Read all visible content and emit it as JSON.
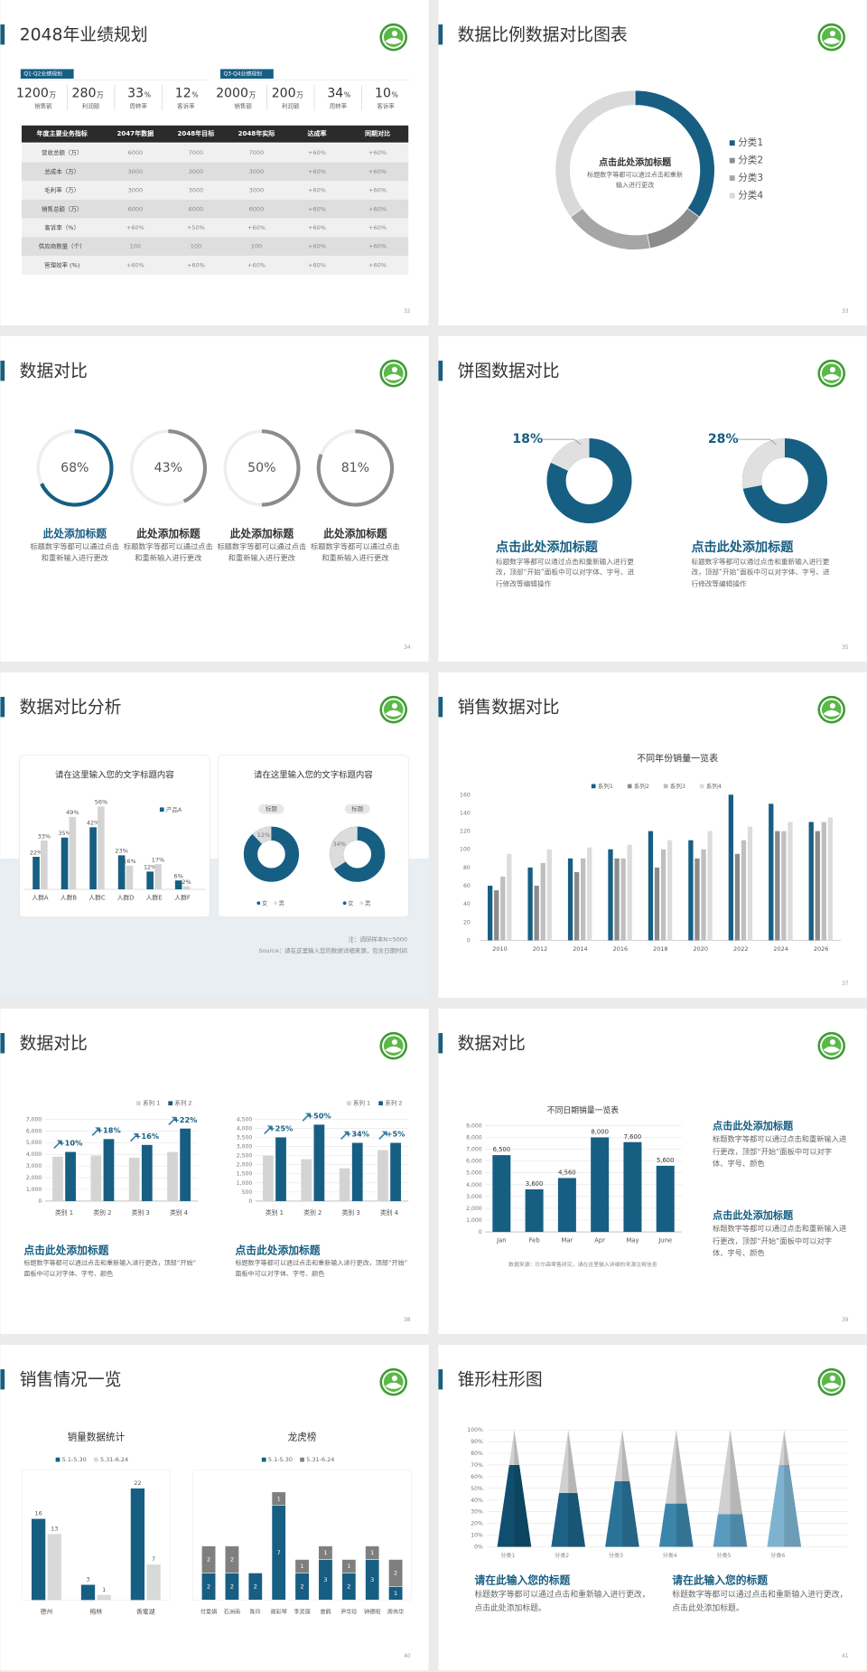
{
  "slides": [
    {
      "title": "2048年业绩规划",
      "page": "32",
      "stat_groups": [
        {
          "label": "Q1-Q2业绩规划",
          "stats": [
            {
              "value": "1200",
              "unit": "万",
              "label": "销售额"
            },
            {
              "value": "280",
              "unit": "万",
              "label": "利润额"
            },
            {
              "value": "33",
              "unit": "%",
              "label": "周转率"
            },
            {
              "value": "12",
              "unit": "%",
              "label": "客诉率"
            }
          ]
        },
        {
          "label": "Q3-Q4业绩规划",
          "stats": [
            {
              "value": "2000",
              "unit": "万",
              "label": "销售额"
            },
            {
              "value": "200",
              "unit": "万",
              "label": "利润额"
            },
            {
              "value": "34",
              "unit": "%",
              "label": "周转率"
            },
            {
              "value": "10",
              "unit": "%",
              "label": "客诉率"
            }
          ]
        }
      ],
      "table": {
        "header": [
          "年度主要业务指标",
          "2047年数据",
          "2048年目标",
          "2048年实际",
          "达成率",
          "同期对比"
        ],
        "rows": [
          [
            "营收总额（万）",
            "6000",
            "7000",
            "7000",
            "+60%",
            "+60%"
          ],
          [
            "总成本（万）",
            "3000",
            "3000",
            "3000",
            "+60%",
            "+60%"
          ],
          [
            "毛利率（万）",
            "3000",
            "3000",
            "3000",
            "+60%",
            "+60%"
          ],
          [
            "销售总额（万）",
            "6000",
            "6000",
            "6000",
            "+60%",
            "+60%"
          ],
          [
            "客诉率（%）",
            "+60%",
            "+50%",
            "+60%",
            "+60%",
            "+60%"
          ],
          [
            "供应商数量（个）",
            "100",
            "100",
            "100",
            "+60%",
            "+60%"
          ],
          [
            "管理效率 (%)",
            "+60%",
            "+60%",
            "+60%",
            "+60%",
            "+60%"
          ]
        ]
      }
    },
    {
      "title": "数据比例数据对比图表",
      "page": "33",
      "chart": {
        "type": "pie",
        "categories": [
          "分类1",
          "分类2",
          "分类3",
          "分类4"
        ],
        "values": [
          35,
          12,
          18,
          35
        ],
        "colors": [
          "#175e83",
          "#8c8c8c",
          "#a6a6a6",
          "#d9d9d9"
        ]
      },
      "center_title": "点击此处添加标题",
      "center_text": "标题数字等都可以通过点击和重新输入进行更改"
    },
    {
      "title": "数据对比",
      "page": "34",
      "chart": {
        "type": "ring",
        "values": [
          68,
          43,
          50,
          81
        ],
        "value_labels": [
          "68%",
          "43%",
          "50%",
          "81%"
        ],
        "colors": [
          "#175e83",
          "#8c8c8c",
          "#8c8c8c",
          "#8c8c8c"
        ]
      },
      "items": [
        {
          "title": "此处添加标题",
          "text": "标题数字等都可以通过点击和重新输入进行更改"
        },
        {
          "title": "此处添加标题",
          "text": "标题数字等都可以通过点击和重新输入进行更改"
        },
        {
          "title": "此处添加标题",
          "text": "标题数字等都可以通过点击和重新输入进行更改"
        },
        {
          "title": "此处添加标题",
          "text": "标题数字等都可以通过点击和重新输入进行更改"
        }
      ]
    },
    {
      "title": "饼图数据对比",
      "page": "35",
      "chart": {
        "type": "donut",
        "values": [
          18,
          28
        ],
        "value_labels": [
          "18%",
          "28%"
        ],
        "color": "#e0e0e0"
      },
      "items": [
        {
          "title": "点击此处添加标题",
          "text": "标题数字等都可以通过点击和重新输入进行更改，顶部“开始”面板中可以对字体、字号、进行修改等编辑操作"
        },
        {
          "title": "点击此处添加标题",
          "text": "标题数字等都可以通过点击和重新输入进行更改，顶部“开始”面板中可以对字体、字号、进行修改等编辑操作"
        }
      ]
    },
    {
      "title": "数据对比分析",
      "page": "36",
      "cards": [
        {
          "title": "请在这里输入您的文字标题内容",
          "chart": {
            "type": "bar",
            "categories": [
              "人群A",
              "人群B",
              "人群C",
              "人群D",
              "人群E",
              "人群F"
            ],
            "series": [
              {
                "name": "产品A",
                "color": "#175e83",
                "values": [
                  22,
                  35,
                  42,
                  23,
                  12,
                  6
                ],
                "value_labels": [
                  "22%",
                  "35%",
                  "42%",
                  "23%",
                  "12%",
                  "6%"
                ]
              },
              {
                "color": "#d4d4d4",
                "values": [
                  33,
                  49,
                  56,
                  16,
                  17,
                  2
                ],
                "value_labels": [
                  "33%",
                  "49%",
                  "56%",
                  "16%",
                  "17%",
                  "2%"
                ]
              }
            ]
          }
        },
        {
          "title": "请在这里输入您的文字标题内容",
          "chart": {
            "type": "donut",
            "labels": [
              "标题",
              "标题"
            ],
            "values": [
              12,
              34
            ],
            "value_labels": [
              "12%",
              "34%"
            ],
            "legend": [
              "女",
              "男"
            ],
            "colors": [
              "#175e83",
              "#dcdcdc"
            ]
          }
        }
      ],
      "notes": [
        "注：调研样本N=5000",
        "Source：请在这里输入您的数据详细来源，包含日期时间"
      ]
    },
    {
      "title": "销售数据对比",
      "page": "37",
      "chart": {
        "type": "bar",
        "title": "不同年份销量一览表",
        "categories": [
          "2010",
          "2012",
          "2014",
          "2016",
          "2018",
          "2020",
          "2022",
          "2024",
          "2026"
        ],
        "series": [
          {
            "name": "系列1",
            "color": "#175e83",
            "values": [
              60,
              80,
              90,
              100,
              120,
              110,
              160,
              150,
              130
            ]
          },
          {
            "name": "系列2",
            "color": "#8c8c8c",
            "values": [
              55,
              60,
              75,
              90,
              80,
              90,
              95,
              120,
              120
            ]
          },
          {
            "name": "系列3",
            "color": "#bfbfbf",
            "values": [
              70,
              85,
              90,
              90,
              100,
              100,
              110,
              120,
              130
            ]
          },
          {
            "name": "系列4",
            "color": "#dcdcdc",
            "values": [
              95,
              100,
              102,
              105,
              110,
              120,
              125,
              130,
              135
            ]
          }
        ],
        "ylim": [
          0,
          160
        ],
        "yticks": [
          0,
          20,
          40,
          60,
          80,
          100,
          120,
          140,
          160
        ],
        "grid": false
      }
    },
    {
      "title": "数据对比",
      "page": "38",
      "charts": [
        {
          "type": "bar",
          "categories": [
            "类别 1",
            "类别 2",
            "类别 3",
            "类别 4"
          ],
          "series": [
            {
              "name": "系列 1",
              "color": "#d4d4d4",
              "values": [
                3800,
                3900,
                3700,
                4200
              ]
            },
            {
              "name": "系列 2",
              "color": "#175e83",
              "values": [
                4200,
                5300,
                4800,
                6200
              ]
            }
          ],
          "annotations": [
            "+10%",
            "+18%",
            "+16%",
            "+22%"
          ],
          "ylim": [
            0,
            7000
          ],
          "yticks": [
            0,
            {
              "value": 1000,
              "label": "1,000"
            },
            {
              "value": 2000,
              "label": "2,000"
            },
            {
              "value": 3000,
              "label": "3,000"
            },
            {
              "value": 4000,
              "label": "4,000"
            },
            {
              "value": 5000,
              "label": "5,000"
            },
            {
              "value": 6000,
              "label": "6,000"
            },
            {
              "value": 7000,
              "label": "7,000"
            }
          ],
          "grid": true
        },
        {
          "type": "bar",
          "categories": [
            "类别 1",
            "类别 2",
            "类别 3",
            "类别 4"
          ],
          "series": [
            {
              "name": "系列 1",
              "color": "#d4d4d4",
              "values": [
                2500,
                2300,
                1800,
                2800
              ]
            },
            {
              "name": "系列 2",
              "color": "#175e83",
              "values": [
                3500,
                4200,
                3200,
                3200
              ]
            }
          ],
          "annotations": [
            "+25%",
            "+50%",
            "+34%",
            "+5%"
          ],
          "ylim": [
            0,
            4500
          ],
          "yticks": [
            0,
            500,
            {
              "value": 1000,
              "label": "1,000"
            },
            {
              "value": 1500,
              "label": "1,500"
            },
            {
              "value": 2000,
              "label": "2,000"
            },
            {
              "value": 2500,
              "label": "2,500"
            },
            {
              "value": 3000,
              "label": "3,000"
            },
            {
              "value": 3500,
              "label": "3,500"
            },
            {
              "value": 4000,
              "label": "4,000"
            },
            {
              "value": 4500,
              "label": "4,500"
            }
          ],
          "grid": true
        }
      ],
      "items": [
        {
          "title": "点击此处添加标题",
          "text": "标题数字等都可以通过点击和重新输入进行更改，顶部“开始”面板中可以对字体、字号、颜色"
        },
        {
          "title": "点击此处添加标题",
          "text": "标题数字等都可以通过点击和重新输入进行更改，顶部“开始”面板中可以对字体、字号、颜色"
        }
      ]
    },
    {
      "title": "数据对比",
      "page": "39",
      "chart": {
        "type": "bar",
        "title": "不同日期销量一览表",
        "categories": [
          "Jan",
          "Feb",
          "Mar",
          "Apr",
          "May",
          "June"
        ],
        "values": [
          6500,
          3600,
          4560,
          8000,
          7600,
          5600
        ],
        "value_labels": [
          "6,500",
          "3,600",
          "4,560",
          "8,000",
          "7,600",
          "5,600"
        ],
        "color": "#175e83",
        "ylim": [
          0,
          9000
        ],
        "yticks": [
          0,
          {
            "value": 1000,
            "label": "1,000"
          },
          {
            "value": 2000,
            "label": "2,000"
          },
          {
            "value": 3000,
            "label": "3,000"
          },
          {
            "value": 4000,
            "label": "4,000"
          },
          {
            "value": 5000,
            "label": "5,000"
          },
          {
            "value": 6000,
            "label": "6,000"
          },
          {
            "value": 7000,
            "label": "7,000"
          },
          {
            "value": 8000,
            "label": "8,000"
          },
          {
            "value": 9000,
            "label": "9,000"
          }
        ],
        "grid": true,
        "source": "数据来源：珍尔森零售研究，请在这里输入详细的来源注释信息"
      },
      "items": [
        {
          "title": "点击此处添加标题",
          "text": "标题数字等都可以通过点击和重新输入进行更改，顶部“开始”面板中可以对字体、字号、颜色"
        },
        {
          "title": "点击此处添加标题",
          "text": "标题数字等都可以通过点击和重新输入进行更改，顶部“开始”面板中可以对字体、字号、颜色"
        }
      ]
    },
    {
      "title": "销售情况一览",
      "page": "40",
      "charts": [
        {
          "type": "bar",
          "title": "销量数据统计",
          "categories": [
            "德州",
            "梅林",
            "香蜜湖"
          ],
          "series": [
            {
              "name": "5.1-5.30",
              "color": "#175e83",
              "values": [
                16,
                3,
                22
              ]
            },
            {
              "name": "5.31-6.24",
              "color": "#d9d9d9",
              "values": [
                13,
                1,
                7
              ]
            }
          ]
        },
        {
          "type": "stacked-bar",
          "title": "龙虎榜",
          "categories": [
            "付夏娟",
            "石洲南",
            "陈玲",
            "谢彩琴",
            "李灵丽",
            "曾鹤",
            "尹华珍",
            "钟德昭",
            "周伟华"
          ],
          "series": [
            {
              "name": "5.1-5.30",
              "color": "#175e83",
              "values": [
                2,
                2,
                2,
                7,
                2,
                3,
                2,
                3,
                1
              ]
            },
            {
              "name": "5.31-6.24",
              "color": "#7f7f7f",
              "values": [
                2,
                2,
                null,
                1,
                1,
                1,
                1,
                1,
                2
              ]
            }
          ]
        }
      ]
    },
    {
      "title": "锥形柱形图",
      "page": "41",
      "chart": {
        "type": "cone",
        "categories": [
          "分类1",
          "分类2",
          "分类3",
          "分类4",
          "分类5",
          "分类6"
        ],
        "series": [
          {
            "values": [
              70,
              46,
              56,
              37,
              28,
              70
            ],
            "colors": [
              "#0f4e6e",
              "#1d6186",
              "#2a7398",
              "#3b85aa",
              "#5a9bbd",
              "#7db3cf"
            ]
          },
          {
            "values": [
              30,
              54,
              44,
              63,
              72,
              30
            ],
            "color": "#d0d0d0"
          }
        ],
        "ylim": [
          0,
          100
        ],
        "yticks": [
          {
            "value": 0,
            "label": "0%"
          },
          {
            "value": 10,
            "label": "10%"
          },
          {
            "value": 20,
            "label": "20%"
          },
          {
            "value": 30,
            "label": "30%"
          },
          {
            "value": 40,
            "label": "40%"
          },
          {
            "value": 50,
            "label": "50%"
          },
          {
            "value": 60,
            "label": "60%"
          },
          {
            "value": 70,
            "label": "70%"
          },
          {
            "value": 80,
            "label": "80%"
          },
          {
            "value": 90,
            "label": "90%"
          },
          {
            "value": 100,
            "label": "100%"
          }
        ],
        "grid": true
      },
      "items": [
        {
          "title": "请在此输入您的标题",
          "text": "标题数字等都可以通过点击和重新输入进行更改，点击此处添加标题。"
        },
        {
          "title": "请在此输入您的标题",
          "text": "标题数字等都可以通过点击和重新输入进行更改，点击此处添加标题。"
        }
      ]
    }
  ]
}
